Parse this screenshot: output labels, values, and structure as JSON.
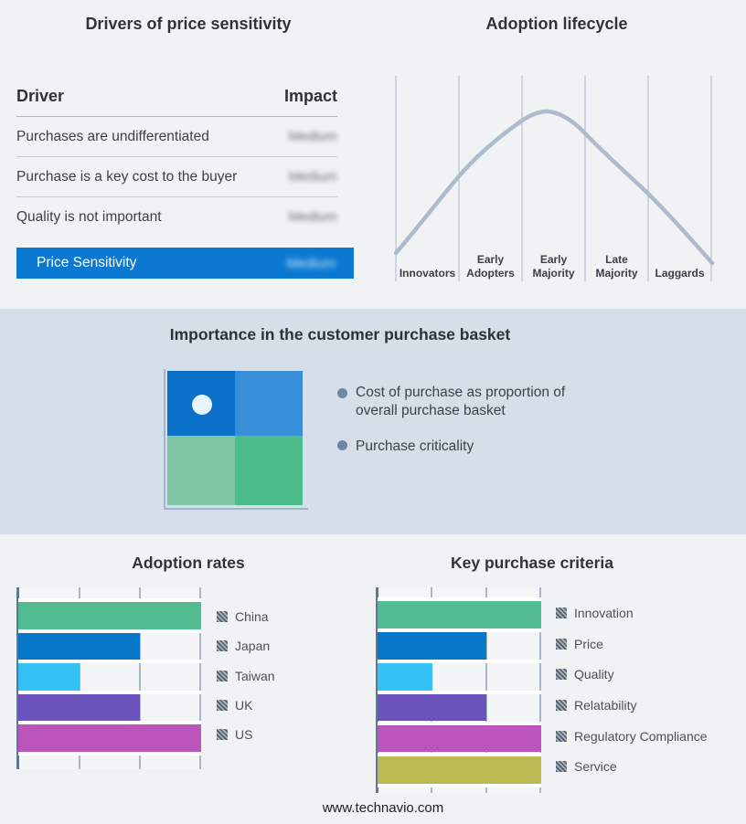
{
  "drivers_panel": {
    "title": "Drivers of price sensitivity",
    "columns": {
      "driver": "Driver",
      "impact": "Impact"
    },
    "rows": [
      {
        "driver": "Purchases are undifferentiated",
        "impact": "Medium",
        "impact_blurred": true
      },
      {
        "driver": "Purchase is a key cost to the buyer",
        "impact": "Medium",
        "impact_blurred": true
      },
      {
        "driver": "Quality is not important",
        "impact": "Medium",
        "impact_blurred": true
      }
    ],
    "summary_row": {
      "label": "Price Sensitivity",
      "impact": "Medium",
      "impact_blurred": true,
      "bar_color": "#0b79d1"
    }
  },
  "basket_panel": {
    "title": "Importance in the customer purchase basket",
    "background_color": "#d5dee9",
    "bullet_color": "#6e86a6",
    "bullets": [
      "Cost of purchase as proportion of overall purchase basket",
      "Purchase criticality"
    ],
    "quadrant": {
      "top_left_color": "#0a70c8",
      "top_right_color": "#388ed9",
      "bottom_left_color": "#7dc5a5",
      "bottom_right_color": "#4dbc8b",
      "marker_color": "#e9f4fb",
      "axis_color": "#9db6cf"
    }
  },
  "chart_data": [
    {
      "type": "bar",
      "title": "Adoption rates",
      "orientation": "horizontal",
      "categories": [
        "China",
        "Japan",
        "Taiwan",
        "UK",
        "US"
      ],
      "values": [
        3,
        2,
        1,
        2,
        3
      ],
      "xlim": [
        0,
        3
      ],
      "value_note": "no numeric tick labels shown; values in gridline units",
      "colors": [
        "#53bb92",
        "#0778c9",
        "#34c1f3",
        "#6a53ba",
        "#bc55bb"
      ],
      "axis_color": "#5c7893",
      "gridline_color": "#a9b6c6",
      "legend_position": "right",
      "legend_swatch_style": "gray-hatched",
      "grid": true,
      "xlabel": "",
      "ylabel": ""
    },
    {
      "type": "bar",
      "title": "Key purchase criteria",
      "orientation": "horizontal",
      "categories": [
        "Innovation",
        "Price",
        "Quality",
        "Relatability",
        "Regulatory Compliance",
        "Service"
      ],
      "values": [
        3,
        2,
        1,
        2,
        3,
        3
      ],
      "xlim": [
        0,
        3
      ],
      "value_note": "no numeric tick labels shown; values in gridline units",
      "colors": [
        "#53bb92",
        "#0778c9",
        "#34c1f3",
        "#6a53ba",
        "#bc55bb",
        "#bcb952"
      ],
      "axis_color": "#5c7893",
      "gridline_color": "#a9b6c6",
      "legend_position": "right",
      "legend_swatch_style": "gray-hatched",
      "grid": true,
      "xlabel": "",
      "ylabel": ""
    },
    {
      "type": "line",
      "subtype": "bell-curve",
      "title": "Adoption lifecycle",
      "x_stages": [
        "Innovators",
        "Early Adopters",
        "Early Majority",
        "Late Majority",
        "Laggards"
      ],
      "peak_stage": "Early Majority",
      "curve_color": "#aebbce",
      "gridline_color": "#b6c2d2",
      "grid": true
    }
  ],
  "footer": {
    "url": "www.technavio.com"
  }
}
